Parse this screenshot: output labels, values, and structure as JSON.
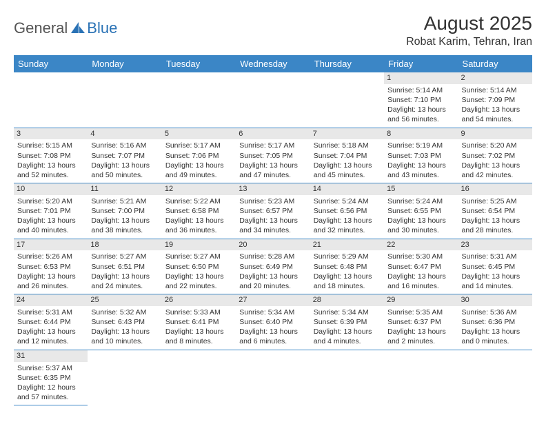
{
  "logo": {
    "text1": "General",
    "text2": "Blue"
  },
  "title": "August 2025",
  "location": "Robat Karim, Tehran, Iran",
  "colors": {
    "header_bg": "#3b86c6",
    "header_text": "#ffffff",
    "daynum_bg": "#e8e8e8",
    "rule": "#3b86c6",
    "logo_gray": "#555555",
    "logo_blue": "#2a72b5"
  },
  "weekdays": [
    "Sunday",
    "Monday",
    "Tuesday",
    "Wednesday",
    "Thursday",
    "Friday",
    "Saturday"
  ],
  "grid": {
    "first_weekday_index": 5,
    "days_in_month": 31
  },
  "days": {
    "1": {
      "sunrise": "5:14 AM",
      "sunset": "7:10 PM",
      "dl_h": 13,
      "dl_m": 56
    },
    "2": {
      "sunrise": "5:14 AM",
      "sunset": "7:09 PM",
      "dl_h": 13,
      "dl_m": 54
    },
    "3": {
      "sunrise": "5:15 AM",
      "sunset": "7:08 PM",
      "dl_h": 13,
      "dl_m": 52
    },
    "4": {
      "sunrise": "5:16 AM",
      "sunset": "7:07 PM",
      "dl_h": 13,
      "dl_m": 50
    },
    "5": {
      "sunrise": "5:17 AM",
      "sunset": "7:06 PM",
      "dl_h": 13,
      "dl_m": 49
    },
    "6": {
      "sunrise": "5:17 AM",
      "sunset": "7:05 PM",
      "dl_h": 13,
      "dl_m": 47
    },
    "7": {
      "sunrise": "5:18 AM",
      "sunset": "7:04 PM",
      "dl_h": 13,
      "dl_m": 45
    },
    "8": {
      "sunrise": "5:19 AM",
      "sunset": "7:03 PM",
      "dl_h": 13,
      "dl_m": 43
    },
    "9": {
      "sunrise": "5:20 AM",
      "sunset": "7:02 PM",
      "dl_h": 13,
      "dl_m": 42
    },
    "10": {
      "sunrise": "5:20 AM",
      "sunset": "7:01 PM",
      "dl_h": 13,
      "dl_m": 40
    },
    "11": {
      "sunrise": "5:21 AM",
      "sunset": "7:00 PM",
      "dl_h": 13,
      "dl_m": 38
    },
    "12": {
      "sunrise": "5:22 AM",
      "sunset": "6:58 PM",
      "dl_h": 13,
      "dl_m": 36
    },
    "13": {
      "sunrise": "5:23 AM",
      "sunset": "6:57 PM",
      "dl_h": 13,
      "dl_m": 34
    },
    "14": {
      "sunrise": "5:24 AM",
      "sunset": "6:56 PM",
      "dl_h": 13,
      "dl_m": 32
    },
    "15": {
      "sunrise": "5:24 AM",
      "sunset": "6:55 PM",
      "dl_h": 13,
      "dl_m": 30
    },
    "16": {
      "sunrise": "5:25 AM",
      "sunset": "6:54 PM",
      "dl_h": 13,
      "dl_m": 28
    },
    "17": {
      "sunrise": "5:26 AM",
      "sunset": "6:53 PM",
      "dl_h": 13,
      "dl_m": 26
    },
    "18": {
      "sunrise": "5:27 AM",
      "sunset": "6:51 PM",
      "dl_h": 13,
      "dl_m": 24
    },
    "19": {
      "sunrise": "5:27 AM",
      "sunset": "6:50 PM",
      "dl_h": 13,
      "dl_m": 22
    },
    "20": {
      "sunrise": "5:28 AM",
      "sunset": "6:49 PM",
      "dl_h": 13,
      "dl_m": 20
    },
    "21": {
      "sunrise": "5:29 AM",
      "sunset": "6:48 PM",
      "dl_h": 13,
      "dl_m": 18
    },
    "22": {
      "sunrise": "5:30 AM",
      "sunset": "6:47 PM",
      "dl_h": 13,
      "dl_m": 16
    },
    "23": {
      "sunrise": "5:31 AM",
      "sunset": "6:45 PM",
      "dl_h": 13,
      "dl_m": 14
    },
    "24": {
      "sunrise": "5:31 AM",
      "sunset": "6:44 PM",
      "dl_h": 13,
      "dl_m": 12
    },
    "25": {
      "sunrise": "5:32 AM",
      "sunset": "6:43 PM",
      "dl_h": 13,
      "dl_m": 10
    },
    "26": {
      "sunrise": "5:33 AM",
      "sunset": "6:41 PM",
      "dl_h": 13,
      "dl_m": 8
    },
    "27": {
      "sunrise": "5:34 AM",
      "sunset": "6:40 PM",
      "dl_h": 13,
      "dl_m": 6
    },
    "28": {
      "sunrise": "5:34 AM",
      "sunset": "6:39 PM",
      "dl_h": 13,
      "dl_m": 4
    },
    "29": {
      "sunrise": "5:35 AM",
      "sunset": "6:37 PM",
      "dl_h": 13,
      "dl_m": 2
    },
    "30": {
      "sunrise": "5:36 AM",
      "sunset": "6:36 PM",
      "dl_h": 13,
      "dl_m": 0
    },
    "31": {
      "sunrise": "5:37 AM",
      "sunset": "6:35 PM",
      "dl_h": 12,
      "dl_m": 57
    }
  }
}
